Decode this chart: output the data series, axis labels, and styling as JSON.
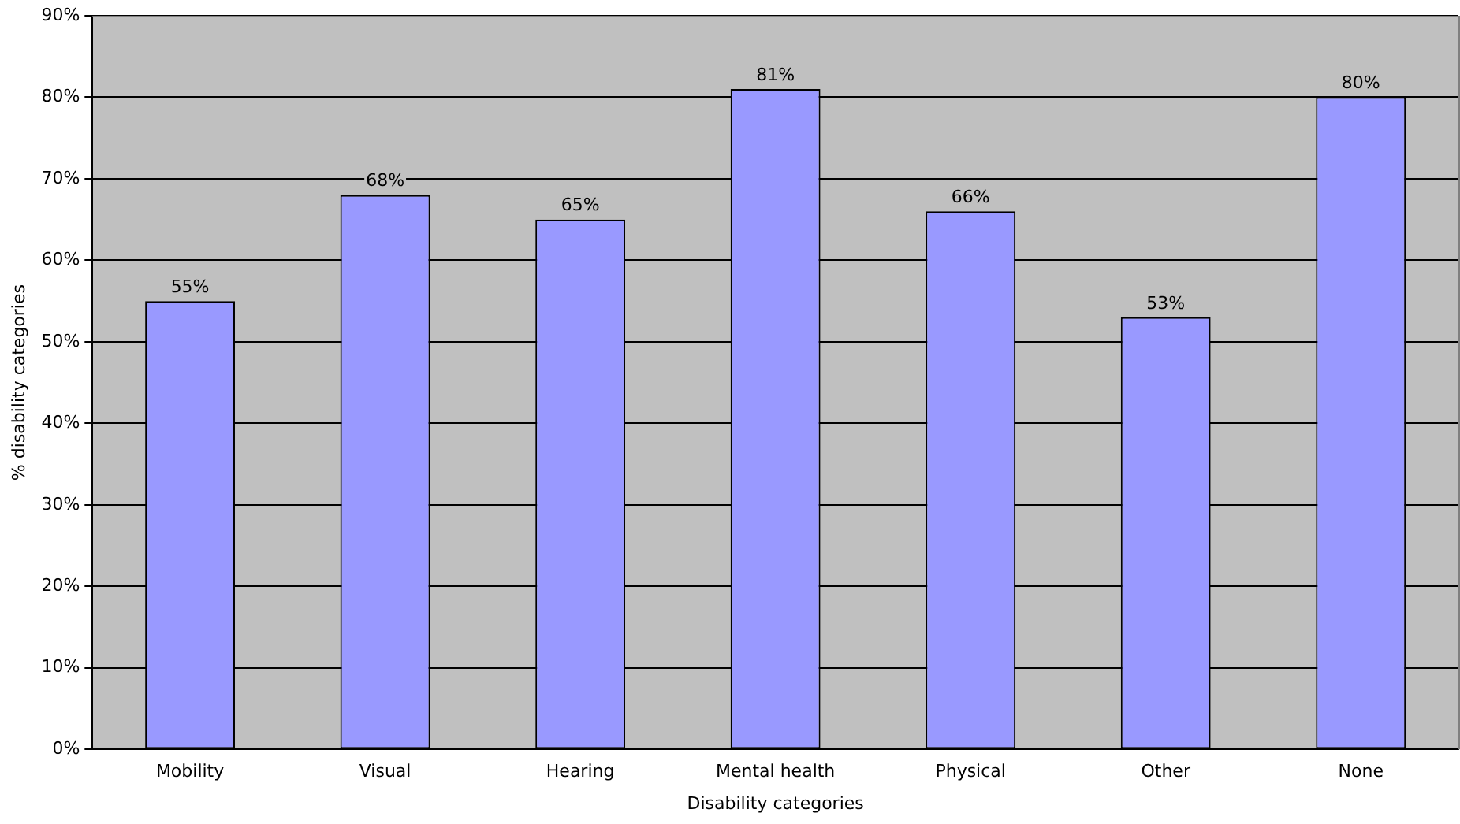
{
  "chart_data": {
    "type": "bar",
    "xlabel": "Disability categories",
    "ylabel": "% disability categories",
    "categories": [
      "Mobility",
      "Visual",
      "Hearing",
      "Mental health",
      "Physical",
      "Other",
      "None"
    ],
    "values": [
      55,
      68,
      65,
      81,
      66,
      53,
      80
    ],
    "value_labels": [
      "55%",
      "68%",
      "65%",
      "81%",
      "66%",
      "53%",
      "80%"
    ],
    "color": "#9999ff",
    "ylim": [
      0,
      90
    ],
    "yticks": [
      {
        "value": 0,
        "label": "0%"
      },
      {
        "value": 10,
        "label": "10%"
      },
      {
        "value": 20,
        "label": "20%"
      },
      {
        "value": 30,
        "label": "30%"
      },
      {
        "value": 40,
        "label": "40%"
      },
      {
        "value": 50,
        "label": "50%"
      },
      {
        "value": 60,
        "label": "60%"
      },
      {
        "value": 70,
        "label": "70%"
      },
      {
        "value": 80,
        "label": "80%"
      },
      {
        "value": 90,
        "label": "90%"
      }
    ],
    "grid": "y",
    "legend": false
  }
}
